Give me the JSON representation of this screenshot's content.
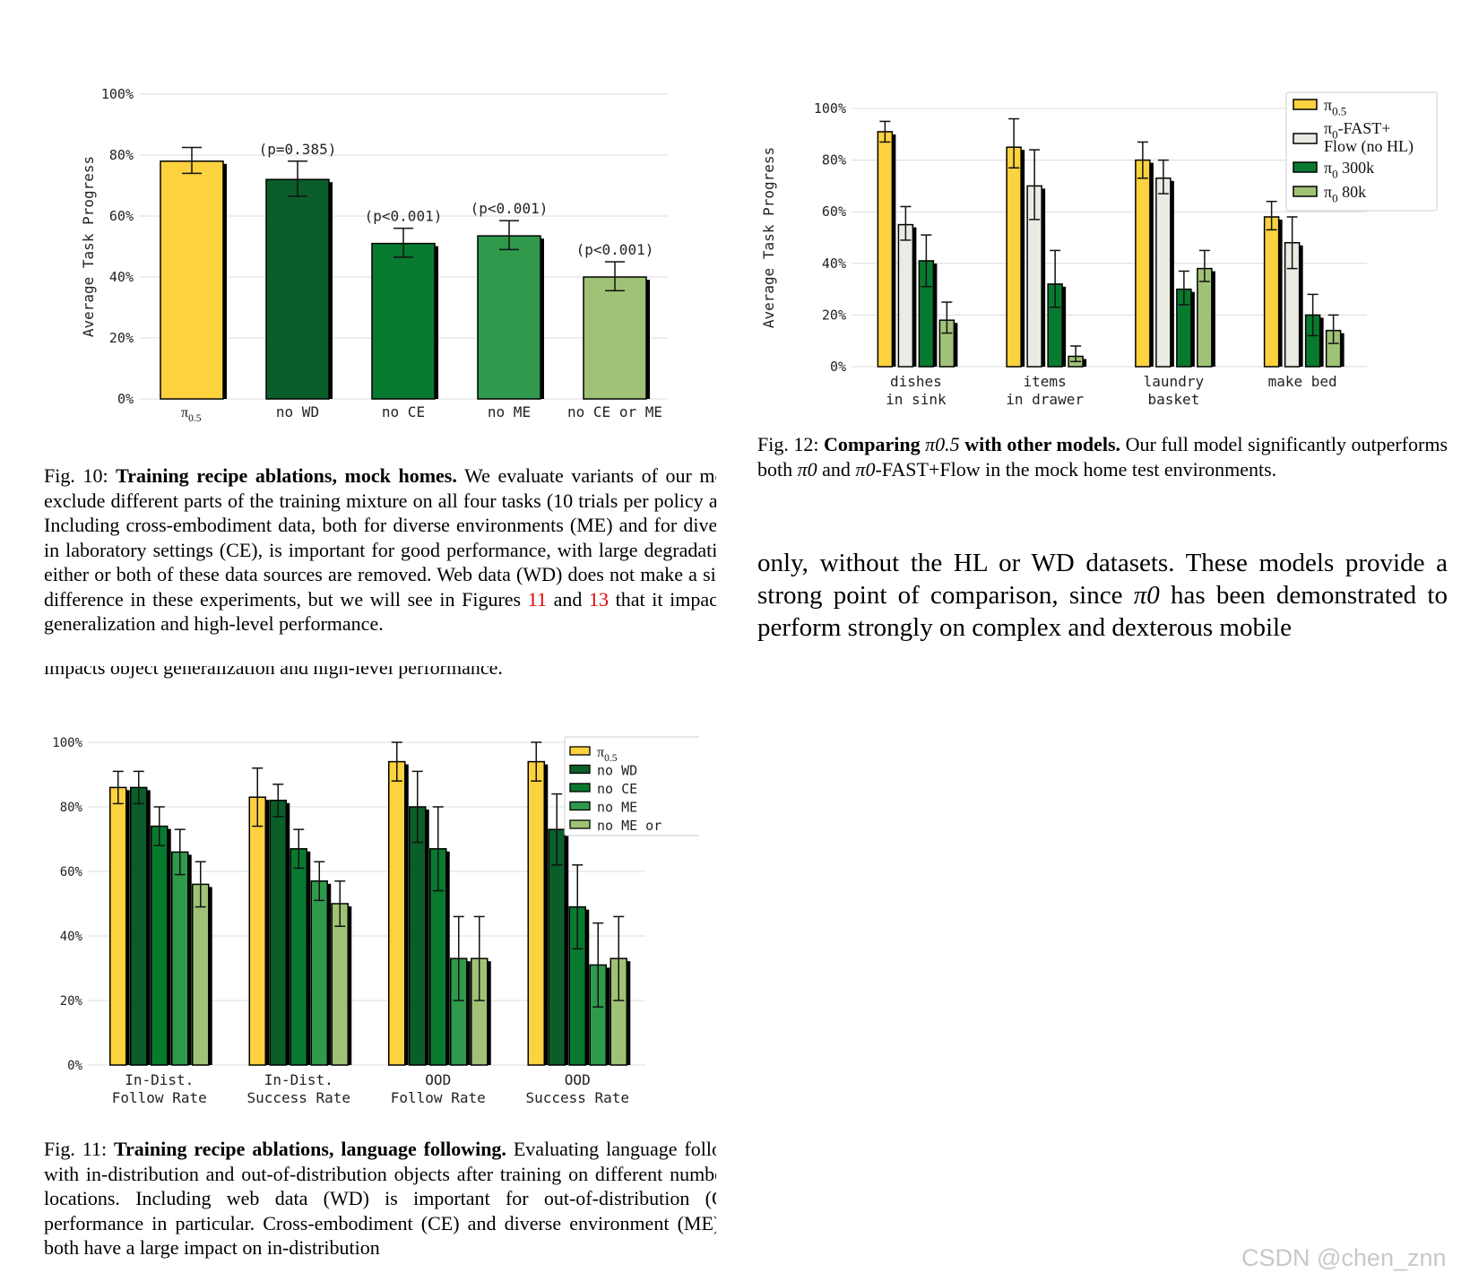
{
  "chart_data": [
    {
      "id": "fig10",
      "type": "bar",
      "ylabel": "Average Task Progress",
      "yticks": [
        "0%",
        "20%",
        "40%",
        "60%",
        "80%",
        "100%"
      ],
      "ylim": [
        0,
        100
      ],
      "categories": [
        "π0.5",
        "no WD",
        "no CE",
        "no ME",
        "no CE or ME"
      ],
      "values": [
        78,
        72,
        51,
        53.5,
        40
      ],
      "error_low": [
        74,
        66.5,
        46.5,
        49,
        35.5
      ],
      "error_high": [
        82.5,
        78,
        56,
        58.5,
        45
      ],
      "annotations": [
        "",
        "(p=0.385)",
        "(p<0.001)",
        "(p<0.001)",
        "(p<0.001)"
      ],
      "colors": [
        "#fcd23e",
        "#0a5e2a",
        "#087a2f",
        "#2f9a4c",
        "#a0c276"
      ]
    },
    {
      "id": "fig12",
      "type": "bar",
      "ylabel": "Average Task Progress",
      "yticks": [
        "0%",
        "20%",
        "40%",
        "60%",
        "80%",
        "100%"
      ],
      "ylim": [
        0,
        100
      ],
      "categories": [
        [
          "dishes",
          "in sink"
        ],
        [
          "items",
          "in drawer"
        ],
        [
          "laundry",
          "basket"
        ],
        [
          "make bed"
        ]
      ],
      "series": [
        {
          "name": "π0.5",
          "color": "#fcd23e",
          "values": [
            91,
            85,
            80,
            58
          ],
          "low": [
            87,
            77,
            73,
            53
          ],
          "high": [
            95,
            96,
            87,
            64
          ]
        },
        {
          "name": "π0-FAST+ Flow (no HL)",
          "color": "#ecebe3",
          "values": [
            55,
            70,
            73,
            48
          ],
          "low": [
            49,
            57,
            67,
            38
          ],
          "high": [
            62,
            84,
            80,
            58
          ]
        },
        {
          "name": "π0 300k",
          "color": "#087a2f",
          "values": [
            41,
            32,
            30,
            20
          ],
          "low": [
            31,
            23,
            24,
            12
          ],
          "high": [
            51,
            45,
            37,
            28
          ]
        },
        {
          "name": "π0 80k",
          "color": "#a0c276",
          "values": [
            18,
            4,
            38,
            14
          ],
          "low": [
            13,
            2,
            33,
            9
          ],
          "high": [
            25,
            8,
            45,
            20
          ]
        }
      ],
      "legend_placement": "top-right"
    },
    {
      "id": "fig11",
      "type": "bar",
      "yticks": [
        "0%",
        "20%",
        "40%",
        "60%",
        "80%",
        "100%"
      ],
      "ylim": [
        0,
        100
      ],
      "categories": [
        [
          "In-Dist.",
          "Follow Rate"
        ],
        [
          "In-Dist.",
          "Success Rate"
        ],
        [
          "OOD",
          "Follow Rate"
        ],
        [
          "OOD",
          "Success Rate"
        ]
      ],
      "series": [
        {
          "name": "π0.5",
          "color": "#fcd23e",
          "values": [
            86,
            83,
            94,
            94
          ],
          "low": [
            81,
            74,
            88,
            88
          ],
          "high": [
            91,
            92,
            100,
            100
          ]
        },
        {
          "name": "no WD",
          "color": "#0a5e2a",
          "values": [
            86,
            82,
            80,
            73
          ],
          "low": [
            81,
            77,
            69,
            62
          ],
          "high": [
            91,
            87,
            91,
            84
          ]
        },
        {
          "name": "no CE",
          "color": "#087a2f",
          "values": [
            74,
            67,
            67,
            49
          ],
          "low": [
            68,
            61,
            54,
            36
          ],
          "high": [
            80,
            73,
            80,
            62
          ]
        },
        {
          "name": "no ME",
          "color": "#2f9a4c",
          "values": [
            66,
            57,
            33,
            31
          ],
          "low": [
            59,
            51,
            20,
            18
          ],
          "high": [
            73,
            63,
            46,
            44
          ]
        },
        {
          "name": "no ME or",
          "color": "#a0c276",
          "values": [
            56,
            50,
            33,
            33
          ],
          "low": [
            49,
            43,
            20,
            20
          ],
          "high": [
            63,
            57,
            46,
            46
          ]
        }
      ],
      "legend_placement": "top-right"
    }
  ],
  "fig10_caption": {
    "label": "Fig. 10: ",
    "title": "Training recipe ablations, mock homes.",
    "text_1": " We evaluate variants of our model that exclude different parts of the training mixture on all four tasks (10 trials per policy and task). Including cross-embodiment data, both for diverse environments (ME) and for diverse tasks in laboratory settings (CE), is important for good performance, with large degradation when either or both of these data sources are removed. Web data (WD) does not make a significant difference in these experiments, but we will see in Figures ",
    "ref_1": "11",
    "text_2": " and ",
    "ref_2": "13",
    "text_3": " that it impacts object generalization and high-level performance."
  },
  "fig10_caption_overflow": "impacts object generalization and high-level performance.",
  "fig11_caption": {
    "label": "Fig. 11: ",
    "title": "Training recipe ablations, language following.",
    "text": " Evaluating language following with in-distribution and out-of-distribution objects after training on different numbers of locations. Including web data (WD) is important for out-of-distribution (OOD) performance in particular. Cross-embodiment (CE) and diverse environment (ME) data both have a large impact on in-distribution"
  },
  "fig12_caption": {
    "label": "Fig. 12: ",
    "title_1": "Comparing ",
    "title_math": "π0.5",
    "title_2": " with other models.",
    "text_1": " Our full model significantly outperforms both ",
    "math_1": "π0",
    "text_2": " and ",
    "math_2": "π0",
    "text_3": "-FAST+Flow in the mock home test environments."
  },
  "body_text": {
    "part_1": "only, without the HL or WD datasets. These models provide a strong point of comparison, since ",
    "math": "π0",
    "part_2": " has been demonstrated to perform strongly on complex and dexterous mobile"
  },
  "watermark": "CSDN @chen_znn"
}
